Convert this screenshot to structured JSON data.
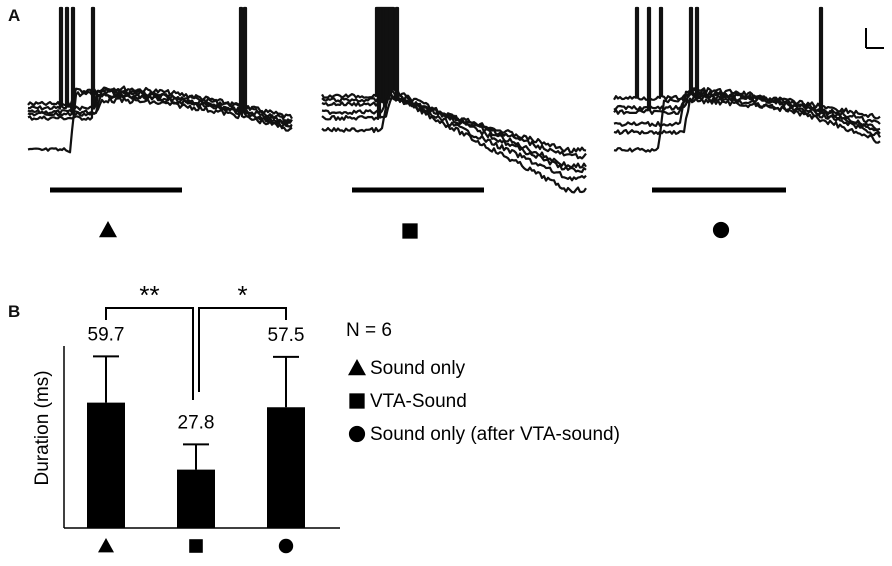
{
  "panels": {
    "a_label": "A",
    "b_label": "B"
  },
  "traces": [
    {
      "marker": "triangle-icon"
    },
    {
      "marker": "square-icon"
    },
    {
      "marker": "circle-icon"
    }
  ],
  "chart_data": {
    "type": "bar",
    "title": "",
    "xlabel": "",
    "ylabel": "Duration (ms)",
    "categories": [
      "triangle",
      "square",
      "circle"
    ],
    "values": [
      59.7,
      27.8,
      57.5
    ],
    "value_labels": [
      "59.7",
      "27.8",
      "57.5"
    ],
    "errors": [
      22,
      12,
      24
    ],
    "ylim": [
      0,
      100
    ],
    "bar_color": "#000000",
    "grid": false,
    "significance": [
      {
        "pair": [
          0,
          1
        ],
        "label": "**"
      },
      {
        "pair": [
          1,
          2
        ],
        "label": "*"
      }
    ],
    "legend": {
      "n_label": "N = 6",
      "entries": [
        {
          "marker": "triangle-icon",
          "label": "Sound only"
        },
        {
          "marker": "square-icon",
          "label": "VTA-Sound"
        },
        {
          "marker": "circle-icon",
          "label": "Sound only (after VTA-sound)"
        }
      ]
    }
  }
}
